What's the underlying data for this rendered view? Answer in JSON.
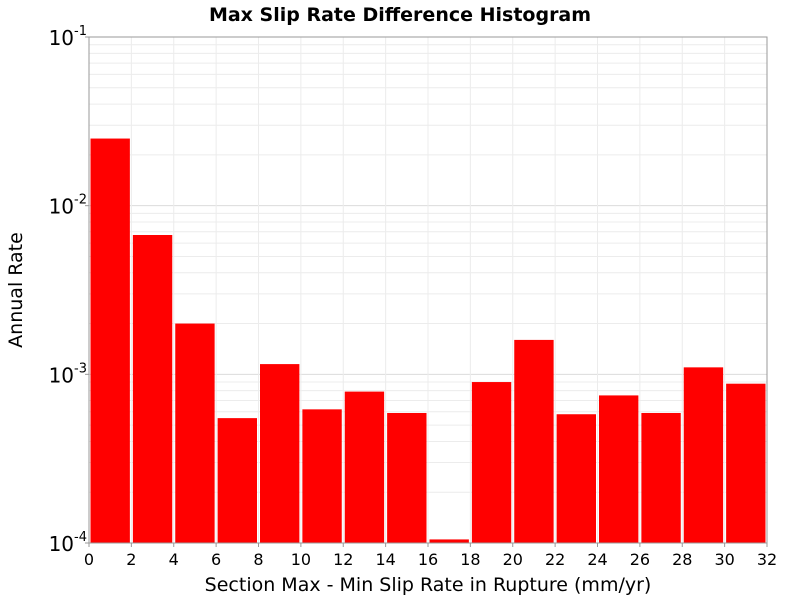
{
  "chart_data": {
    "type": "bar",
    "title": "Max Slip Rate Difference Histogram",
    "xlabel": "Section Max - Min Slip Rate in Rupture (mm/yr)",
    "ylabel": "Annual Rate",
    "xlim": [
      0,
      32
    ],
    "ylim": [
      0.0001,
      0.1
    ],
    "yscale": "log",
    "x_ticks": [
      "0",
      "2",
      "4",
      "6",
      "8",
      "10",
      "12",
      "14",
      "16",
      "18",
      "20",
      "22",
      "24",
      "26",
      "28",
      "30",
      "32"
    ],
    "y_ticks": [
      {
        "value": 0.0001,
        "base": "10",
        "exp": "-4"
      },
      {
        "value": 0.001,
        "base": "10",
        "exp": "-3"
      },
      {
        "value": 0.01,
        "base": "10",
        "exp": "-2"
      },
      {
        "value": 0.1,
        "base": "10",
        "exp": "-1"
      }
    ],
    "bin_width": 2,
    "bins": [
      {
        "x0": 0,
        "value": 0.025
      },
      {
        "x0": 2,
        "value": 0.0067
      },
      {
        "x0": 4,
        "value": 0.002
      },
      {
        "x0": 6,
        "value": 0.00055
      },
      {
        "x0": 8,
        "value": 0.00115
      },
      {
        "x0": 10,
        "value": 0.00062
      },
      {
        "x0": 12,
        "value": 0.00079
      },
      {
        "x0": 14,
        "value": 0.00059
      },
      {
        "x0": 16,
        "value": 0.000105
      },
      {
        "x0": 18,
        "value": 0.0009
      },
      {
        "x0": 20,
        "value": 0.0016
      },
      {
        "x0": 22,
        "value": 0.00058
      },
      {
        "x0": 24,
        "value": 0.00075
      },
      {
        "x0": 26,
        "value": 0.00059
      },
      {
        "x0": 28,
        "value": 0.0011
      },
      {
        "x0": 30,
        "value": 0.00088
      }
    ],
    "bar_color": "#ff0000",
    "grid": true,
    "legend": "none"
  }
}
